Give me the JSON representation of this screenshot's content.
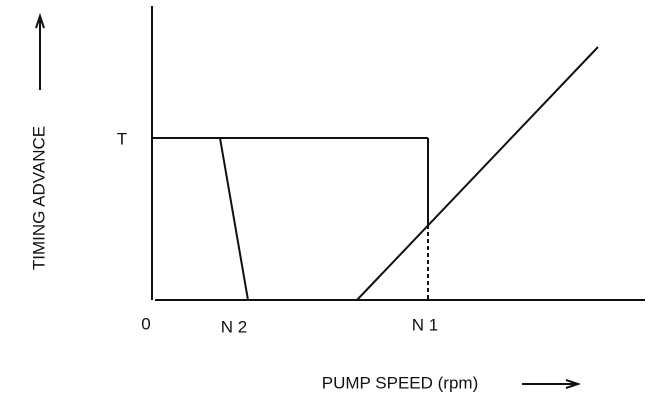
{
  "axes": {
    "y_label": "TIMING ADVANCE",
    "x_label": "PUMP SPEED (rpm)"
  },
  "labels": {
    "t": "T",
    "origin": "0",
    "n2": "N 2",
    "n1": "N 1"
  }
}
